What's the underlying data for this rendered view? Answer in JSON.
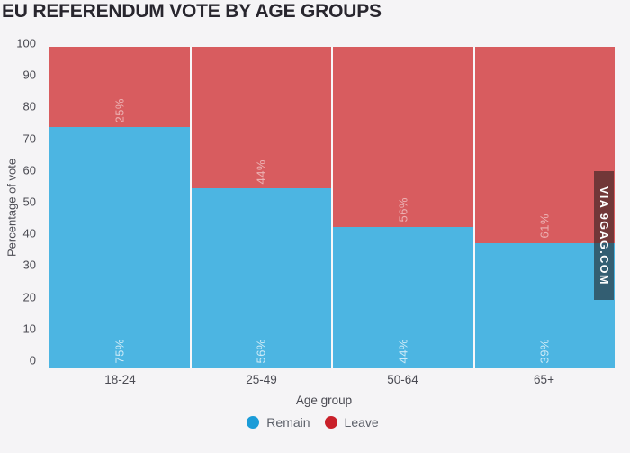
{
  "title": "EU REFERENDUM VOTE BY AGE GROUPS",
  "watermark": "VIA 9GAG.COM",
  "chart_data": {
    "type": "bar",
    "stacked": true,
    "title": "EU REFERENDUM VOTE BY AGE GROUPS",
    "xlabel": "Age group",
    "ylabel": "Percentage of vote",
    "ylim": [
      0,
      100
    ],
    "yticks": [
      "0",
      "10",
      "20",
      "30",
      "40",
      "50",
      "60",
      "70",
      "80",
      "90",
      "100"
    ],
    "categories": [
      "18-24",
      "25-49",
      "50-64",
      "65+"
    ],
    "series": [
      {
        "name": "Remain",
        "color": "#4cb5e2",
        "legend_color": "#1b9cd8",
        "values": [
          75,
          56,
          44,
          39
        ],
        "labels": [
          "75%",
          "56%",
          "44%",
          "39%"
        ]
      },
      {
        "name": "Leave",
        "color": "#d85c5f",
        "legend_color": "#c9202a",
        "values": [
          25,
          44,
          56,
          61
        ],
        "labels": [
          "25%",
          "44%",
          "56%",
          "61%"
        ]
      }
    ],
    "legend_position": "bottom",
    "grid": false
  }
}
